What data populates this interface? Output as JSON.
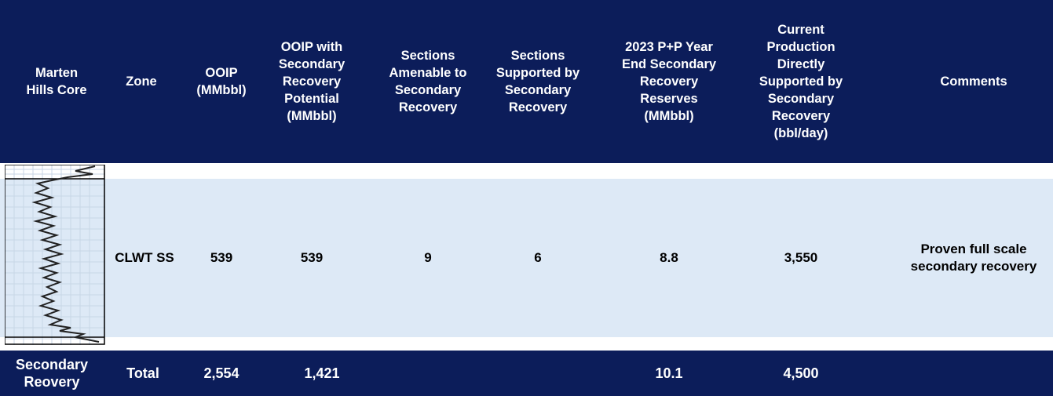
{
  "table": {
    "header": [
      "Marten Hills Core",
      "Zone",
      "OOIP (MMbbl)",
      "OOIP with Secondary Recovery Potential (MMbbl)",
      "Sections Amenable to Secondary Recovery",
      "Sections Supported by Secondary Recovery",
      "2023 P+P Year End Secondary Recovery Reserves (MMbbl)",
      "Current Production Directly Supported by Secondary Recovery (bbl/day)",
      "Comments"
    ],
    "row": {
      "zone": "CLWT SS",
      "ooip": "539",
      "ooip_secondary": "539",
      "sections_amenable": "9",
      "sections_supported": "6",
      "reserves": "8.8",
      "production": "3,550",
      "comments": "Proven full scale secondary recovery"
    },
    "total": {
      "label": "Secondary Reovery",
      "zone": "Total",
      "ooip": "2,554",
      "ooip_secondary": "1,421",
      "reserves": "10.1",
      "production": "4,500"
    }
  }
}
